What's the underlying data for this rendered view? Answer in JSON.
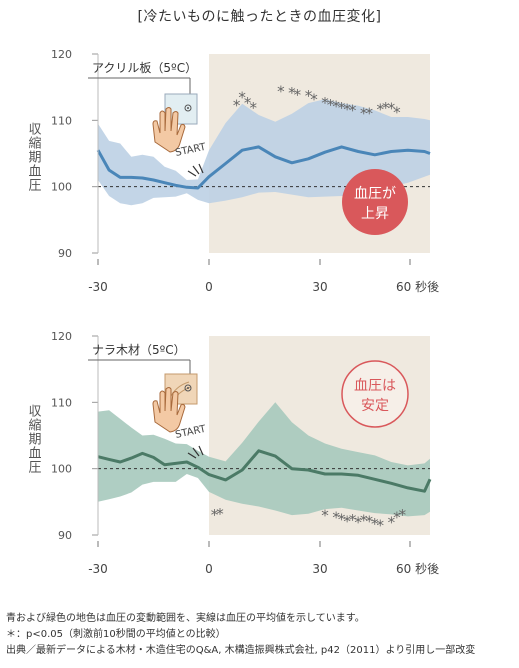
{
  "title": "[冷たいものに触ったときの血圧変化]",
  "colors": {
    "bg_after": "#efe9df",
    "band_top": "#bcd0e4",
    "line_top": "#4a86b8",
    "band_bottom": "#a6c9bd",
    "line_bottom": "#4b7a66",
    "asterisk": "#666666",
    "badge_red": "#d9585b",
    "badge_outline": "#d9585b"
  },
  "chart_data": [
    {
      "type": "area",
      "material_label": "アクリル板（5ºC）",
      "start_label": "START",
      "badge": {
        "text": "血圧が上昇",
        "line1": "血圧が",
        "line2": "上昇",
        "style": "filled"
      },
      "ylabel": "収縮期血圧",
      "ylim": [
        90,
        120
      ],
      "yticks": [
        90,
        100,
        110,
        120
      ],
      "xlim": [
        -33,
        40
      ],
      "xticks": [
        {
          "value": -30,
          "label": "-30"
        },
        {
          "value": 0,
          "label": "0"
        },
        {
          "value": 30,
          "label": "30"
        },
        {
          "value": 60,
          "label": "60 秒後"
        }
      ],
      "reference_y": 100,
      "after_start_x": 0,
      "mean": [
        [
          -30,
          105.5
        ],
        [
          -27,
          102.5
        ],
        [
          -24,
          101.4
        ],
        [
          -21,
          101.4
        ],
        [
          -18,
          101.3
        ],
        [
          -15,
          101
        ],
        [
          -12,
          100.6
        ],
        [
          -9,
          100.2
        ],
        [
          -6,
          99.9
        ],
        [
          -3,
          99.8
        ],
        [
          0,
          101.5
        ],
        [
          3,
          103.5
        ],
        [
          6,
          105.5
        ],
        [
          9,
          106.0
        ],
        [
          12,
          104.5
        ],
        [
          15,
          103.6
        ],
        [
          18,
          104.2
        ],
        [
          21,
          105.2
        ],
        [
          24,
          106.0
        ],
        [
          27,
          105.3
        ],
        [
          30,
          104.8
        ],
        [
          33,
          105.3
        ],
        [
          36,
          105.5
        ],
        [
          39,
          105.3
        ],
        [
          40,
          105.0
        ]
      ],
      "band_upper": [
        [
          -30,
          109.5
        ],
        [
          -27,
          106.9
        ],
        [
          -24,
          106.5
        ],
        [
          -21,
          104.5
        ],
        [
          -18,
          104.8
        ],
        [
          -15,
          104.5
        ],
        [
          -12,
          103
        ],
        [
          -9,
          102.4
        ],
        [
          -6,
          101
        ],
        [
          -3,
          101.1
        ],
        [
          0,
          105.5
        ],
        [
          3,
          109.6
        ],
        [
          6,
          112.5
        ],
        [
          9,
          110.8
        ],
        [
          12,
          109.8
        ],
        [
          15,
          111
        ],
        [
          18,
          112.6
        ],
        [
          21,
          113.2
        ],
        [
          24,
          112.6
        ],
        [
          27,
          112.2
        ],
        [
          30,
          111.5
        ],
        [
          33,
          110.5
        ],
        [
          36,
          110.5
        ],
        [
          39,
          110.2
        ],
        [
          40,
          110.0
        ]
      ],
      "band_lower": [
        [
          -30,
          101
        ],
        [
          -27,
          98.6
        ],
        [
          -24,
          97.5
        ],
        [
          -21,
          97.2
        ],
        [
          -18,
          97.5
        ],
        [
          -15,
          98.3
        ],
        [
          -12,
          98.4
        ],
        [
          -9,
          98.5
        ],
        [
          -6,
          99
        ],
        [
          -3,
          98
        ],
        [
          0,
          97.5
        ],
        [
          3,
          97.9
        ],
        [
          6,
          98.4
        ],
        [
          9,
          99.1
        ],
        [
          12,
          99.2
        ],
        [
          15,
          98.8
        ],
        [
          18,
          98.4
        ],
        [
          21,
          98.5
        ],
        [
          24,
          98.6
        ],
        [
          27,
          98.6
        ],
        [
          30,
          99.4
        ],
        [
          33,
          100
        ],
        [
          36,
          100.6
        ],
        [
          39,
          101.5
        ],
        [
          40,
          101.8
        ]
      ],
      "significant_points": [
        [
          5,
          112.4
        ],
        [
          6,
          113.6
        ],
        [
          7,
          112.8
        ],
        [
          8,
          112.0
        ],
        [
          13,
          114.5
        ],
        [
          15,
          114.3
        ],
        [
          16,
          114.0
        ],
        [
          18,
          113.8
        ],
        [
          19,
          113.3
        ],
        [
          21,
          112.8
        ],
        [
          22,
          112.5
        ],
        [
          23,
          112.2
        ],
        [
          24,
          112.0
        ],
        [
          25,
          111.8
        ],
        [
          26,
          111.6
        ],
        [
          28,
          111.2
        ],
        [
          29,
          111.2
        ],
        [
          31,
          111.8
        ],
        [
          32,
          112.0
        ],
        [
          33,
          111.9
        ],
        [
          34,
          111.3
        ]
      ]
    },
    {
      "type": "area",
      "material_label": "ナラ木材（5ºC）",
      "start_label": "START",
      "badge": {
        "text": "血圧は安定",
        "line1": "血圧は",
        "line2": "安定",
        "style": "outline"
      },
      "ylabel": "収縮期血圧",
      "ylim": [
        90,
        120
      ],
      "yticks": [
        90,
        100,
        110,
        120
      ],
      "xlim": [
        -33,
        40
      ],
      "xticks": [
        {
          "value": -30,
          "label": "-30"
        },
        {
          "value": 0,
          "label": "0"
        },
        {
          "value": 30,
          "label": "30"
        },
        {
          "value": 60,
          "label": "60 秒後"
        }
      ],
      "reference_y": 100,
      "after_start_x": 0,
      "mean": [
        [
          -30,
          101.8
        ],
        [
          -27,
          101.4
        ],
        [
          -24,
          101
        ],
        [
          -21,
          101.6
        ],
        [
          -18,
          102.3
        ],
        [
          -15,
          101.7
        ],
        [
          -12,
          100.6
        ],
        [
          -9,
          100.8
        ],
        [
          -6,
          101
        ],
        [
          -3,
          100.2
        ],
        [
          0,
          99.1
        ],
        [
          3,
          98.3
        ],
        [
          6,
          99.8
        ],
        [
          9,
          102.7
        ],
        [
          12,
          101.9
        ],
        [
          15,
          100
        ],
        [
          18,
          99.8
        ],
        [
          21,
          99.2
        ],
        [
          24,
          99.2
        ],
        [
          27,
          99
        ],
        [
          30,
          98.4
        ],
        [
          33,
          97.8
        ],
        [
          36,
          97.1
        ],
        [
          39,
          96.6
        ],
        [
          40,
          98.4
        ]
      ],
      "band_upper": [
        [
          -30,
          108.6
        ],
        [
          -27,
          108.8
        ],
        [
          -24,
          107.5
        ],
        [
          -21,
          106.2
        ],
        [
          -18,
          105
        ],
        [
          -15,
          105.1
        ],
        [
          -12,
          104.5
        ],
        [
          -9,
          103.8
        ],
        [
          -6,
          103.7
        ],
        [
          -3,
          102.7
        ],
        [
          0,
          101.8
        ],
        [
          3,
          101.1
        ],
        [
          6,
          103.9
        ],
        [
          9,
          107.1
        ],
        [
          12,
          110
        ],
        [
          15,
          107
        ],
        [
          18,
          105
        ],
        [
          21,
          103.8
        ],
        [
          24,
          103
        ],
        [
          27,
          102.5
        ],
        [
          30,
          102
        ],
        [
          33,
          101
        ],
        [
          36,
          100.5
        ],
        [
          39,
          100.8
        ],
        [
          40,
          101.5
        ]
      ],
      "band_lower": [
        [
          -30,
          95
        ],
        [
          -27,
          95.4
        ],
        [
          -24,
          95.8
        ],
        [
          -21,
          96.4
        ],
        [
          -18,
          97.6
        ],
        [
          -15,
          98
        ],
        [
          -12,
          98
        ],
        [
          -9,
          98
        ],
        [
          -6,
          99.2
        ],
        [
          -3,
          98.6
        ],
        [
          0,
          96.5
        ],
        [
          3,
          95.3
        ],
        [
          6,
          94.7
        ],
        [
          9,
          94.3
        ],
        [
          12,
          93.7
        ],
        [
          15,
          93
        ],
        [
          18,
          93.2
        ],
        [
          21,
          93.9
        ],
        [
          24,
          94.1
        ],
        [
          27,
          93.7
        ],
        [
          30,
          93.3
        ],
        [
          33,
          93.1
        ],
        [
          36,
          92.8
        ],
        [
          39,
          93
        ],
        [
          40,
          93.5
        ]
      ],
      "significant_points": [
        [
          1,
          93.2
        ],
        [
          2,
          93.3
        ],
        [
          21,
          93.1
        ],
        [
          23,
          92.8
        ],
        [
          24,
          92.5
        ],
        [
          25,
          92.2
        ],
        [
          26,
          92.4
        ],
        [
          27,
          92.0
        ],
        [
          28,
          92.3
        ],
        [
          29,
          92.2
        ],
        [
          30,
          91.8
        ],
        [
          31,
          91.6
        ],
        [
          33,
          92.0
        ],
        [
          34,
          92.8
        ],
        [
          35,
          93.2
        ]
      ]
    }
  ],
  "footnotes": [
    "青および緑色の地色は血圧の変動範囲を、実線は血圧の平均値を示しています。",
    "＊：p<0.05（刺激前10秒間の平均値との比較）",
    "出典／最新データによる木材・木造住宅のQ&A, 木構造振興株式会社, p42（2011）より引用し一部改変"
  ]
}
